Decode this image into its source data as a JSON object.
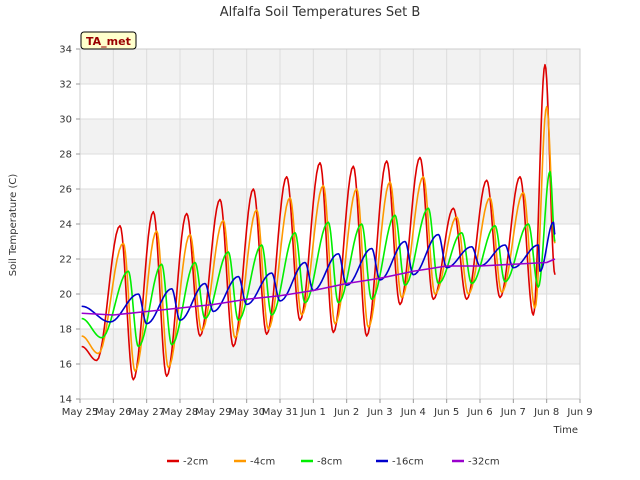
{
  "chart_data": {
    "type": "line",
    "title": "Alfalfa Soil Temperatures Set B",
    "xlabel": "Time",
    "ylabel": "Soil Temperature (C)",
    "badge": "TA_met",
    "ylim": [
      14,
      34
    ],
    "yticks": [
      14,
      16,
      18,
      20,
      22,
      24,
      26,
      28,
      30,
      32,
      34
    ],
    "xlim": [
      0,
      15
    ],
    "xticks": [
      {
        "value": 0,
        "label": "May 25"
      },
      {
        "value": 1,
        "label": "May 26"
      },
      {
        "value": 2,
        "label": "May 27"
      },
      {
        "value": 3,
        "label": "May 28"
      },
      {
        "value": 4,
        "label": "May 29"
      },
      {
        "value": 5,
        "label": "May 30"
      },
      {
        "value": 6,
        "label": "May 31"
      },
      {
        "value": 7,
        "label": "Jun 1"
      },
      {
        "value": 8,
        "label": "Jun 2"
      },
      {
        "value": 9,
        "label": "Jun 3"
      },
      {
        "value": 10,
        "label": "Jun 4"
      },
      {
        "value": 11,
        "label": "Jun 5"
      },
      {
        "value": 12,
        "label": "Jun 6"
      },
      {
        "value": 13,
        "label": "Jun 7"
      },
      {
        "value": 14,
        "label": "Jun 8"
      },
      {
        "value": 15,
        "label": "Jun 9"
      }
    ],
    "grid": true,
    "legend_position": "bottom",
    "series": [
      {
        "name": "-2cm",
        "color": "#dd0000",
        "minima": [
          [
            0.05,
            17.0
          ],
          [
            0.5,
            16.2
          ],
          [
            1.6,
            15.1
          ],
          [
            2.6,
            15.3
          ],
          [
            3.6,
            17.6
          ],
          [
            4.6,
            17.0
          ],
          [
            5.6,
            17.7
          ],
          [
            6.6,
            18.5
          ],
          [
            7.6,
            17.8
          ],
          [
            8.6,
            17.6
          ],
          [
            9.6,
            19.4
          ],
          [
            10.6,
            19.7
          ],
          [
            11.6,
            19.7
          ],
          [
            12.6,
            19.8
          ],
          [
            13.6,
            18.8
          ],
          [
            14.25,
            21.1
          ]
        ],
        "maxima": [
          [
            1.2,
            23.9
          ],
          [
            2.2,
            24.7
          ],
          [
            3.2,
            24.6
          ],
          [
            4.2,
            25.4
          ],
          [
            5.2,
            26.0
          ],
          [
            6.2,
            26.7
          ],
          [
            7.2,
            27.5
          ],
          [
            8.2,
            27.3
          ],
          [
            9.2,
            27.6
          ],
          [
            10.2,
            27.8
          ],
          [
            11.2,
            24.9
          ],
          [
            12.2,
            26.5
          ],
          [
            13.2,
            26.7
          ],
          [
            13.95,
            33.1
          ]
        ]
      },
      {
        "name": "-4cm",
        "color": "#ff9900",
        "minima": [
          [
            0.05,
            17.6
          ],
          [
            0.55,
            16.6
          ],
          [
            1.65,
            15.6
          ],
          [
            2.65,
            15.8
          ],
          [
            3.65,
            17.9
          ],
          [
            4.65,
            17.5
          ],
          [
            5.65,
            18.0
          ],
          [
            6.65,
            18.8
          ],
          [
            7.65,
            18.3
          ],
          [
            8.65,
            18.1
          ],
          [
            9.65,
            19.8
          ],
          [
            10.65,
            20.0
          ],
          [
            11.65,
            20.0
          ],
          [
            12.65,
            20.1
          ],
          [
            13.65,
            19.2
          ],
          [
            14.25,
            22.9
          ]
        ],
        "maxima": [
          [
            1.3,
            22.9
          ],
          [
            2.3,
            23.6
          ],
          [
            3.3,
            23.4
          ],
          [
            4.3,
            24.2
          ],
          [
            5.3,
            24.8
          ],
          [
            6.3,
            25.5
          ],
          [
            7.3,
            26.2
          ],
          [
            8.3,
            26.0
          ],
          [
            9.3,
            26.4
          ],
          [
            10.3,
            26.7
          ],
          [
            11.3,
            24.4
          ],
          [
            12.3,
            25.5
          ],
          [
            13.3,
            25.8
          ],
          [
            14.0,
            30.7
          ]
        ]
      },
      {
        "name": "-8cm",
        "color": "#00ee00",
        "minima": [
          [
            0.05,
            18.6
          ],
          [
            0.65,
            17.5
          ],
          [
            1.75,
            17.0
          ],
          [
            2.75,
            17.1
          ],
          [
            3.75,
            18.6
          ],
          [
            4.75,
            18.5
          ],
          [
            5.75,
            18.8
          ],
          [
            6.75,
            19.5
          ],
          [
            7.75,
            19.5
          ],
          [
            8.75,
            19.7
          ],
          [
            9.75,
            20.5
          ],
          [
            10.75,
            20.6
          ],
          [
            11.75,
            20.6
          ],
          [
            12.75,
            20.7
          ],
          [
            13.75,
            20.4
          ],
          [
            14.25,
            23.0
          ]
        ],
        "maxima": [
          [
            1.45,
            21.3
          ],
          [
            2.45,
            21.7
          ],
          [
            3.45,
            21.8
          ],
          [
            4.45,
            22.4
          ],
          [
            5.45,
            22.8
          ],
          [
            6.45,
            23.5
          ],
          [
            7.45,
            24.1
          ],
          [
            8.45,
            24.0
          ],
          [
            9.45,
            24.5
          ],
          [
            10.45,
            24.9
          ],
          [
            11.45,
            23.5
          ],
          [
            12.45,
            23.9
          ],
          [
            13.45,
            24.0
          ],
          [
            14.1,
            27.0
          ]
        ]
      },
      {
        "name": "-16cm",
        "color": "#0000cc",
        "minima": [
          [
            0.05,
            19.3
          ],
          [
            0.9,
            18.4
          ],
          [
            2.0,
            18.3
          ],
          [
            3.0,
            18.5
          ],
          [
            4.0,
            19.0
          ],
          [
            5.0,
            19.4
          ],
          [
            6.0,
            19.6
          ],
          [
            7.0,
            20.2
          ],
          [
            8.0,
            20.5
          ],
          [
            9.0,
            20.8
          ],
          [
            10.0,
            21.1
          ],
          [
            11.0,
            21.5
          ],
          [
            12.0,
            21.6
          ],
          [
            13.0,
            21.5
          ],
          [
            13.8,
            21.3
          ],
          [
            14.25,
            23.4
          ]
        ],
        "maxima": [
          [
            1.75,
            20.0
          ],
          [
            2.75,
            20.3
          ],
          [
            3.75,
            20.6
          ],
          [
            4.75,
            21.0
          ],
          [
            5.75,
            21.2
          ],
          [
            6.75,
            21.8
          ],
          [
            7.75,
            22.3
          ],
          [
            8.75,
            22.6
          ],
          [
            9.75,
            23.0
          ],
          [
            10.75,
            23.4
          ],
          [
            11.75,
            22.7
          ],
          [
            12.75,
            22.8
          ],
          [
            13.75,
            22.8
          ],
          [
            14.2,
            24.1
          ]
        ]
      },
      {
        "name": "-32cm",
        "color": "#9900cc",
        "points": [
          [
            0.05,
            18.9
          ],
          [
            1.0,
            18.8
          ],
          [
            2.0,
            19.0
          ],
          [
            3.0,
            19.2
          ],
          [
            4.0,
            19.4
          ],
          [
            5.0,
            19.7
          ],
          [
            6.0,
            19.9
          ],
          [
            7.0,
            20.2
          ],
          [
            8.0,
            20.6
          ],
          [
            9.0,
            20.9
          ],
          [
            10.0,
            21.3
          ],
          [
            11.0,
            21.6
          ],
          [
            12.0,
            21.6
          ],
          [
            13.0,
            21.7
          ],
          [
            14.0,
            21.8
          ],
          [
            14.25,
            22.0
          ]
        ]
      }
    ]
  }
}
